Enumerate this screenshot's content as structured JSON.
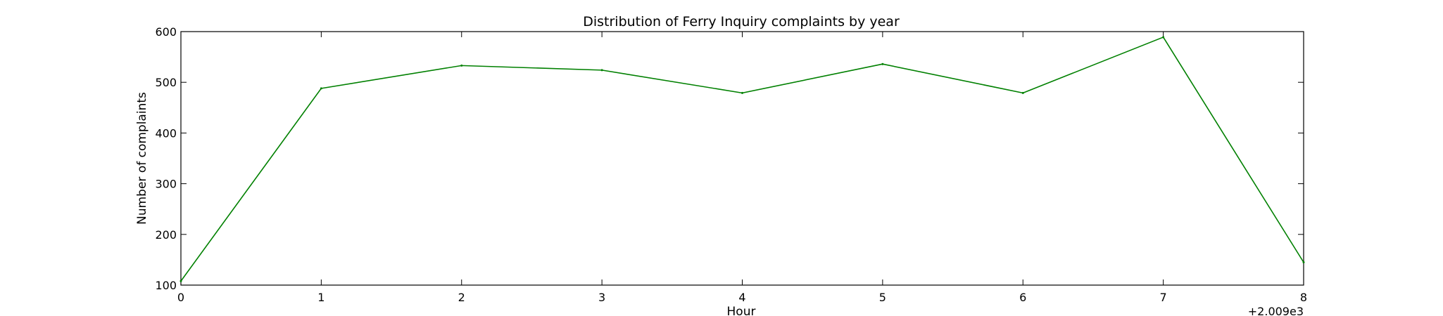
{
  "chart_data": {
    "type": "line",
    "title": "Distribution of  Ferry Inquiry complaints by year",
    "xlabel": "Hour",
    "ylabel": "Number of complaints",
    "x_offset_label": "+2.009e3",
    "xlim": [
      0,
      8
    ],
    "ylim": [
      100,
      600
    ],
    "x_ticks": [
      0,
      1,
      2,
      3,
      4,
      5,
      6,
      7,
      8
    ],
    "y_ticks": [
      100,
      200,
      300,
      400,
      500,
      600
    ],
    "grid": false,
    "series": [
      {
        "color": "#008000",
        "x": [
          0,
          1,
          2,
          3,
          4,
          5,
          6,
          7,
          8
        ],
        "y": [
          108,
          488,
          533,
          524,
          479,
          536,
          479,
          589,
          145
        ]
      }
    ]
  }
}
